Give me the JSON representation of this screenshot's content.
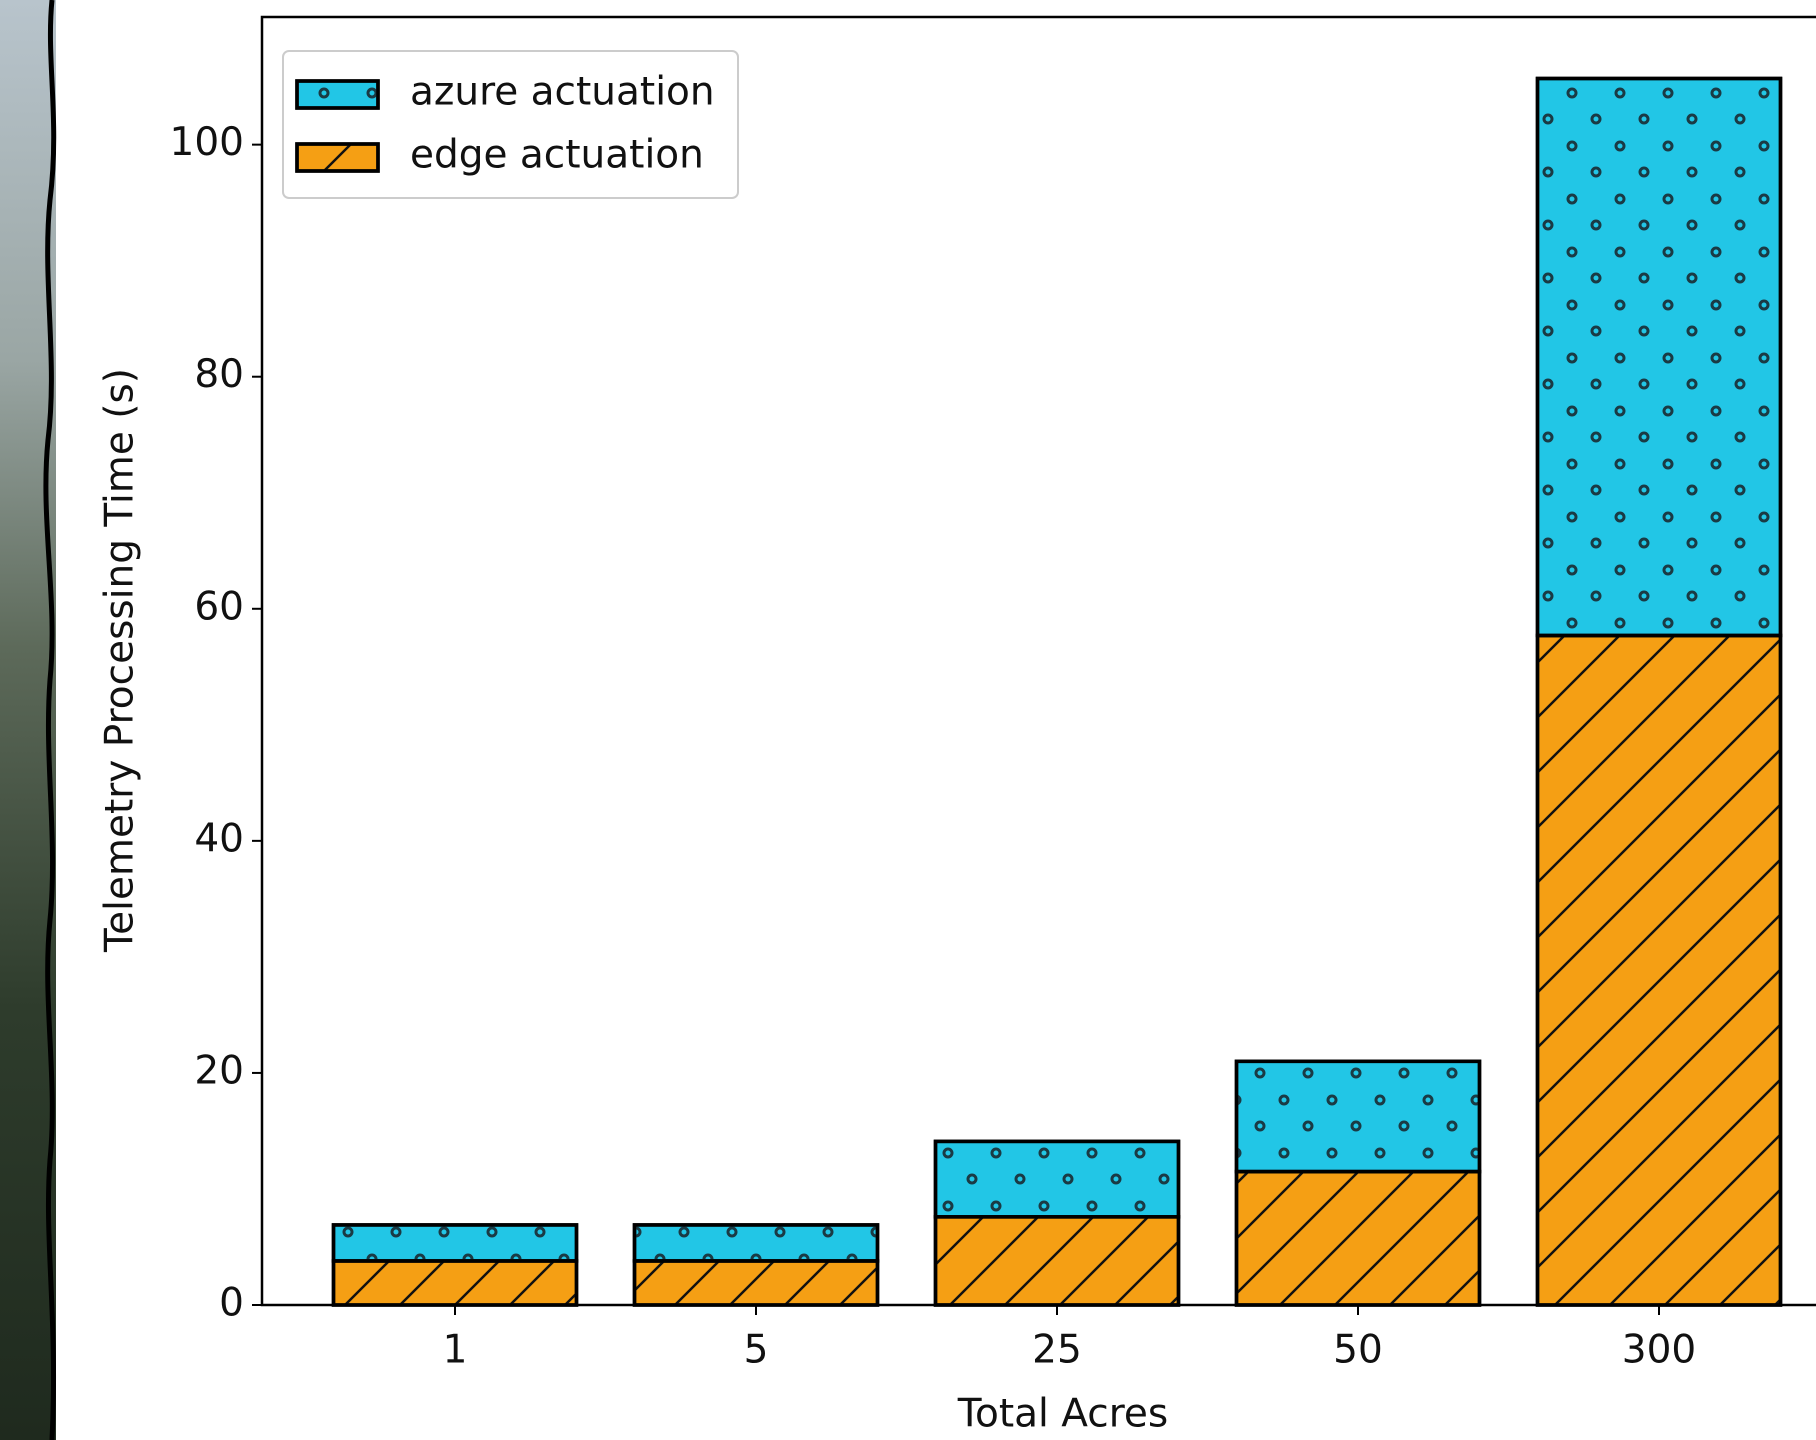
{
  "chart_data": {
    "type": "stacked_bar",
    "x_label": "Total Acres",
    "y_label": "Telemetry Processing Time (s)",
    "categories": [
      "1",
      "5",
      "25",
      "50",
      "300"
    ],
    "series": [
      {
        "name": "edge actuation",
        "color": "#f59f14",
        "hatch": "/",
        "values": [
          3.8,
          3.8,
          7.6,
          11.5,
          57.7
        ]
      },
      {
        "name": "azure actuation",
        "color": "#22c6e6",
        "hatch": "o",
        "values": [
          3.1,
          3.1,
          6.5,
          9.5,
          48.0
        ]
      }
    ],
    "ylim": [
      0,
      111
    ],
    "yticks": [
      0,
      20,
      40,
      60,
      80,
      100
    ],
    "legend": "upper left"
  }
}
